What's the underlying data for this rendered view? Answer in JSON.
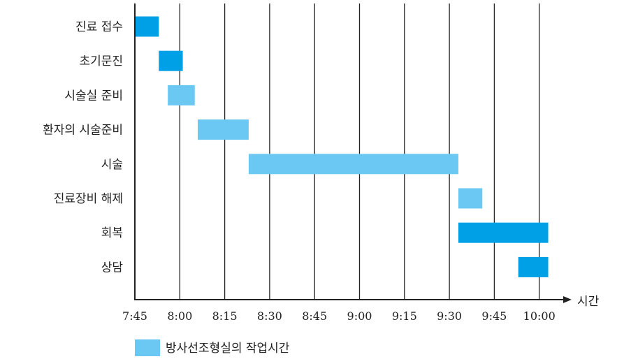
{
  "chart_data": {
    "type": "gantt",
    "title": "",
    "xlabel": "시간",
    "ylabel": "",
    "x_ticks": [
      "7:45",
      "8:00",
      "8:15",
      "8:30",
      "8:45",
      "9:00",
      "9:15",
      "9:30",
      "9:45",
      "10:00"
    ],
    "x_range_minutes": [
      465,
      610
    ],
    "grid": "vertical",
    "legend_position": "bottom-left",
    "colors": {
      "dark": "#00a0e6",
      "light": "#6ac8f2"
    },
    "legend": [
      {
        "label": "방사선조형실의 작업시간",
        "color": "light"
      }
    ],
    "tasks": [
      {
        "label": "진료 접수",
        "start": "7:45",
        "end": "7:53",
        "color": "dark"
      },
      {
        "label": "초기문진",
        "start": "7:53",
        "end": "8:01",
        "color": "dark"
      },
      {
        "label": "시술실 준비",
        "start": "7:56",
        "end": "8:05",
        "color": "light"
      },
      {
        "label": "환자의 시술준비",
        "start": "8:06",
        "end": "8:23",
        "color": "light"
      },
      {
        "label": "시술",
        "start": "8:23",
        "end": "9:33",
        "color": "light"
      },
      {
        "label": "진료장비 해제",
        "start": "9:33",
        "end": "9:41",
        "color": "light"
      },
      {
        "label": "회복",
        "start": "9:33",
        "end": "10:03",
        "color": "dark"
      },
      {
        "label": "상담",
        "start": "9:53",
        "end": "10:03",
        "color": "dark"
      }
    ]
  }
}
